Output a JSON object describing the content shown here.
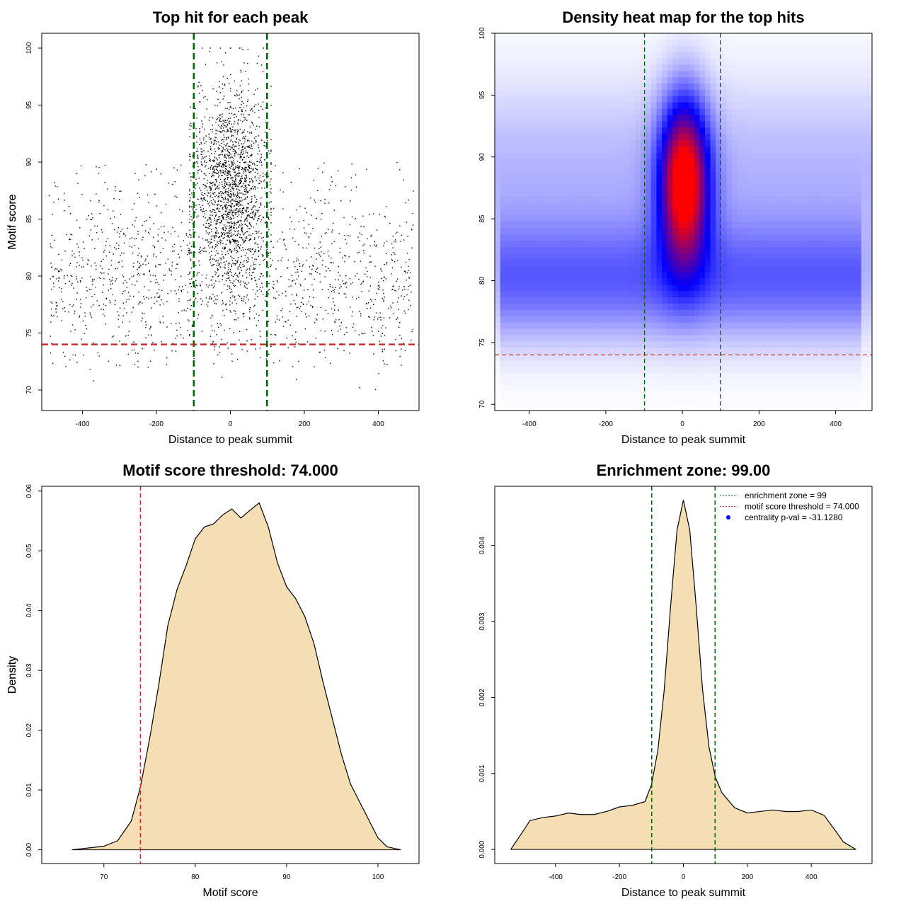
{
  "colors": {
    "threshold": "#d62728",
    "zone": "#006400",
    "fill": "#f5deb3",
    "heat_low": "#ffffff",
    "heat_mid": "#0000ff",
    "heat_high": "#ff0000",
    "legend_dot": "#0000ff"
  },
  "chart_data": [
    {
      "type": "scatter",
      "title": "Top hit for each peak",
      "xlabel": "Distance to peak summit",
      "ylabel": "Motif score",
      "xlim": [
        -510,
        510
      ],
      "ylim": [
        68.2,
        101.3
      ],
      "xticks": [
        -400,
        -200,
        0,
        200,
        400
      ],
      "yticks": [
        70,
        75,
        80,
        85,
        90,
        95,
        100
      ],
      "grid": false,
      "threshold": 74,
      "zone": [
        -99,
        99
      ],
      "distribution": {
        "background": {
          "n_points": 1500,
          "x_range": [
            -490,
            495
          ],
          "y_range": [
            72,
            90
          ],
          "y_mode": 80
        },
        "central": {
          "n_points": 1800,
          "x_center": 0,
          "x_spread": 50,
          "y_mean": 87.5,
          "y_sd": 4.6,
          "y_range": [
            74,
            100
          ]
        }
      }
    },
    {
      "type": "heatmap",
      "title": "Density heat map for the top hits",
      "xlabel": "Distance to peak summit",
      "ylabel": "Motif score",
      "xlim": [
        -490,
        495
      ],
      "ylim": [
        69.5,
        100
      ],
      "xticks": [
        -400,
        -200,
        0,
        200,
        400
      ],
      "yticks": [
        70,
        75,
        80,
        85,
        90,
        95,
        100
      ],
      "grid": false,
      "threshold": 74,
      "zone": [
        -99,
        99
      ],
      "peak": {
        "x": 5,
        "y": 88
      }
    },
    {
      "type": "area",
      "title": "Motif score threshold: 74.000",
      "xlabel": "Motif score",
      "ylabel": "Density",
      "xlim": [
        63.2,
        104.5
      ],
      "ylim": [
        -0.0023,
        0.0608
      ],
      "xticks": [
        70,
        80,
        90,
        100
      ],
      "yticks": [
        0,
        0.01,
        0.02,
        0.03,
        0.04,
        0.05,
        0.06
      ],
      "ytick_labels": [
        "0.00",
        "0.01",
        "0.02",
        "0.03",
        "0.04",
        "0.05",
        "0.06"
      ],
      "grid": false,
      "threshold": 74,
      "x": [
        66.5,
        70,
        71.5,
        73,
        74,
        75,
        76,
        77,
        78,
        79,
        80,
        81,
        82,
        83,
        84,
        85,
        86,
        87,
        88,
        89,
        90,
        91,
        92,
        93,
        94,
        95,
        96,
        97,
        98,
        99,
        100,
        101,
        102.5
      ],
      "y": [
        0,
        0.0006,
        0.0015,
        0.0048,
        0.0105,
        0.0185,
        0.0275,
        0.0375,
        0.0435,
        0.0475,
        0.052,
        0.054,
        0.0545,
        0.056,
        0.057,
        0.0555,
        0.0568,
        0.058,
        0.054,
        0.048,
        0.044,
        0.042,
        0.039,
        0.0345,
        0.028,
        0.022,
        0.016,
        0.011,
        0.008,
        0.005,
        0.002,
        0.0005,
        0
      ]
    },
    {
      "type": "area",
      "title": "Enrichment zone: 99.00",
      "xlabel": "Distance to peak summit",
      "ylabel": "Density",
      "xlim": [
        -590,
        590
      ],
      "ylim": [
        -0.000185,
        0.00478
      ],
      "xticks": [
        -400,
        -200,
        0,
        200,
        400
      ],
      "yticks": [
        0,
        0.001,
        0.002,
        0.003,
        0.004
      ],
      "ytick_labels": [
        "0.000",
        "0.001",
        "0.002",
        "0.003",
        "0.004"
      ],
      "grid": false,
      "zone": [
        -99,
        99
      ],
      "x": [
        -540,
        -500,
        -480,
        -440,
        -400,
        -360,
        -320,
        -280,
        -240,
        -200,
        -160,
        -120,
        -100,
        -80,
        -60,
        -40,
        -20,
        0,
        20,
        40,
        60,
        80,
        100,
        120,
        160,
        200,
        240,
        280,
        320,
        360,
        400,
        440,
        480,
        500,
        540
      ],
      "y": [
        0,
        0.00025,
        0.00038,
        0.00042,
        0.00044,
        0.00048,
        0.00046,
        0.00046,
        0.0005,
        0.00056,
        0.00058,
        0.00063,
        0.00085,
        0.0013,
        0.0021,
        0.0032,
        0.0042,
        0.0046,
        0.0042,
        0.0032,
        0.0021,
        0.00135,
        0.00095,
        0.00075,
        0.00055,
        0.00048,
        0.0005,
        0.00052,
        0.0005,
        0.0005,
        0.00052,
        0.00045,
        0.00022,
        0.0001,
        0
      ],
      "legend": {
        "position": "top-right",
        "items": [
          {
            "label": "enrichment zone = 99",
            "kind": "dotted-line",
            "color": "#006400"
          },
          {
            "label": "motif score threshold = 74.000",
            "kind": "dotted-line",
            "color": "#d62728"
          },
          {
            "label": "centrality p-val = -31.1280",
            "kind": "point",
            "color": "#0000ff"
          }
        ]
      }
    }
  ]
}
